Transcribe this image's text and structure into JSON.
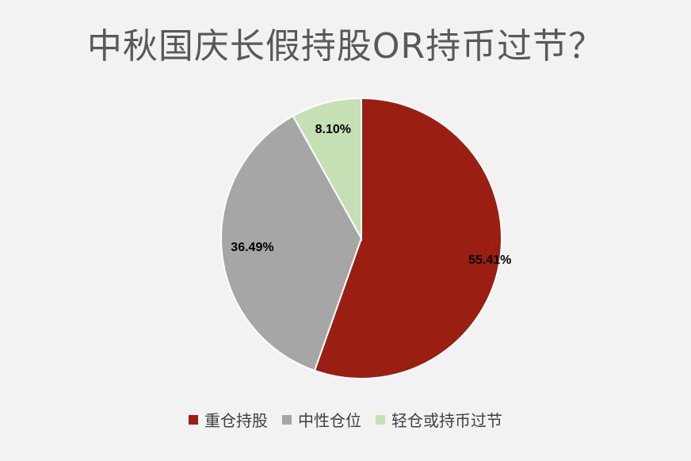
{
  "chart_data": {
    "type": "pie",
    "title": "中秋国庆长假持股OR持币过节？",
    "categories": [
      "重仓持股",
      "中性仓位",
      "轻仓或持币过节"
    ],
    "values": [
      55.41,
      36.49,
      8.1
    ],
    "data_labels": [
      "55.41%",
      "36.49%",
      "8.10%"
    ],
    "colors": [
      "#9a1f12",
      "#a6a6a6",
      "#c5e0b4"
    ],
    "legend_position": "bottom",
    "start_angle_deg": 0,
    "direction": "clockwise"
  }
}
